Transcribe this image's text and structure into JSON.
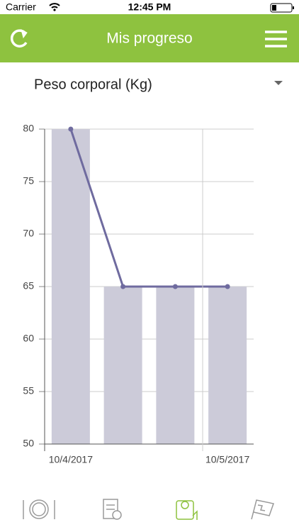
{
  "status_bar": {
    "carrier": "Carrier",
    "time": "12:45 PM"
  },
  "header": {
    "title": "Mis progreso"
  },
  "selector": {
    "label": "Peso corporal (Kg)"
  },
  "chart_data": {
    "type": "bar",
    "categories": [
      "10/4/2017",
      null,
      null,
      "10/5/2017"
    ],
    "series": [
      {
        "type": "bar",
        "color": "#cccbd9",
        "values": [
          80,
          65,
          65,
          65
        ]
      },
      {
        "type": "line",
        "color": "#6f6b9f",
        "values": [
          80,
          65,
          65,
          65
        ]
      }
    ],
    "ylim": [
      50,
      80
    ],
    "yticks": [
      50,
      55,
      60,
      65,
      70,
      75,
      80
    ],
    "grid": true
  }
}
